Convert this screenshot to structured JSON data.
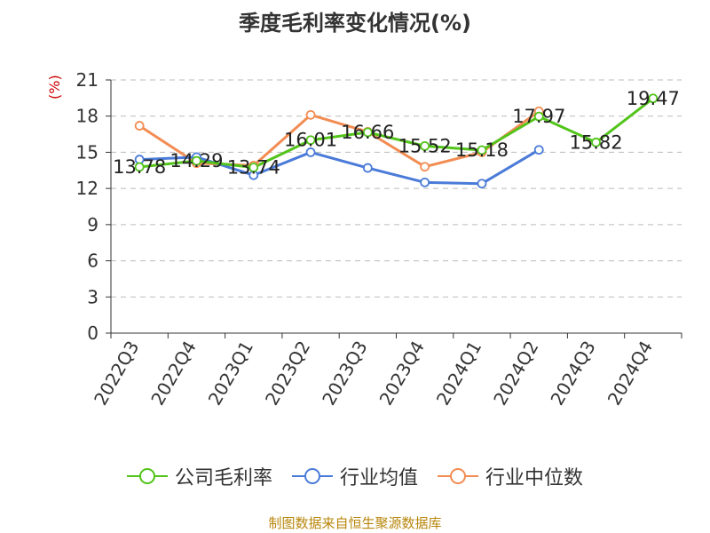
{
  "chart_data": {
    "type": "line",
    "title": "季度毛利率变化情况(%)",
    "unit_label": "(%)",
    "categories": [
      "2022Q3",
      "2022Q4",
      "2023Q1",
      "2023Q2",
      "2023Q3",
      "2023Q4",
      "2024Q1",
      "2024Q2",
      "2024Q3",
      "2024Q4"
    ],
    "ylim": [
      0,
      21
    ],
    "yticks": [
      0,
      3,
      6,
      9,
      12,
      15,
      18,
      21
    ],
    "grid": true,
    "legend_position": "bottom",
    "series": [
      {
        "name": "公司毛利率",
        "color": "#52c41a",
        "values": [
          13.78,
          14.29,
          13.74,
          16.01,
          16.66,
          15.52,
          15.18,
          17.97,
          15.82,
          19.47
        ],
        "labels": [
          "13.78",
          "14.29",
          "13.74",
          "16.01",
          "16.66",
          "15.52",
          "15.18",
          "17.97",
          "15.82",
          "19.47"
        ]
      },
      {
        "name": "行业均值",
        "color": "#4a7bd8",
        "values": [
          14.4,
          14.6,
          13.1,
          15.0,
          13.7,
          12.5,
          12.4,
          15.2,
          null,
          null
        ]
      },
      {
        "name": "行业中位数",
        "color": "#f28c52",
        "values": [
          17.2,
          14.1,
          13.9,
          18.1,
          16.7,
          13.8,
          15.0,
          18.4,
          null,
          null
        ]
      }
    ]
  },
  "footer": {
    "source": "制图数据来自恒生聚源数据库"
  }
}
